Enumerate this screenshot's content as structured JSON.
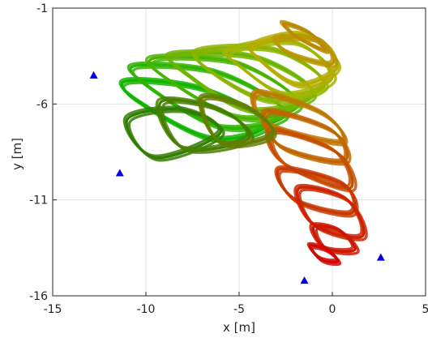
{
  "chart_data": {
    "type": "scatter",
    "title": "",
    "xlabel": "x [m]",
    "ylabel": "y [m]",
    "xlim": [
      -15,
      5
    ],
    "ylim": [
      -16,
      -1
    ],
    "xticks": [
      -15,
      -10,
      -5,
      0,
      5
    ],
    "yticks": [
      -16,
      -11,
      -6,
      -1
    ],
    "xtick_labels": [
      "-15",
      "-10",
      "-5",
      "0",
      "5"
    ],
    "ytick_labels": [
      "-16",
      "-11",
      "-6",
      "-1"
    ],
    "grid": true,
    "legend": "none",
    "colors": {
      "trajectory_start": "#00b400",
      "trajectory_mid": "#b4b400",
      "trajectory_end": "#d20000",
      "shadow_dark": "#2d5a00",
      "anchor": "#0000e0"
    },
    "series": [
      {
        "kind": "anchors",
        "marker": "triangle",
        "x": [
          -12.8,
          -11.4,
          -1.5,
          2.6
        ],
        "y": [
          -4.5,
          -9.6,
          -15.2,
          -14.0
        ]
      },
      {
        "kind": "trajectory",
        "description_of_geometry": "looping flight path",
        "loops": [
          {
            "x": [
              -11.0,
              -7.0,
              -3.5,
              -6.5,
              -10.5,
              -11.0
            ],
            "y": [
              -4.8,
              -5.2,
              -7.0,
              -7.8,
              -5.8,
              -4.8
            ],
            "c": 0.05
          },
          {
            "x": [
              -10.5,
              -6.0,
              -2.5,
              -6.0,
              -10.0,
              -10.5
            ],
            "y": [
              -4.0,
              -4.4,
              -6.5,
              -7.2,
              -5.0,
              -4.0
            ],
            "c": 0.12
          },
          {
            "x": [
              -9.5,
              -5.0,
              -1.8,
              -5.0,
              -9.0,
              -9.5
            ],
            "y": [
              -3.6,
              -3.9,
              -6.0,
              -6.7,
              -4.6,
              -3.6
            ],
            "c": 0.2
          },
          {
            "x": [
              -8.5,
              -4.0,
              -1.0,
              -4.5,
              -8.0,
              -8.5
            ],
            "y": [
              -3.4,
              -3.6,
              -5.5,
              -6.3,
              -4.3,
              -3.4
            ],
            "c": 0.3
          },
          {
            "x": [
              -7.0,
              -3.0,
              -0.4,
              -3.5,
              -6.8,
              -7.0
            ],
            "y": [
              -3.2,
              -3.2,
              -5.0,
              -5.8,
              -4.1,
              -3.2
            ],
            "c": 0.38
          },
          {
            "x": [
              -5.5,
              -2.0,
              0.0,
              -2.5,
              -5.0,
              -5.5
            ],
            "y": [
              -3.2,
              -2.8,
              -4.6,
              -5.5,
              -4.0,
              -3.2
            ],
            "c": 0.45
          },
          {
            "x": [
              -4.2,
              -1.5,
              0.3,
              -1.8,
              -4.0,
              -4.2
            ],
            "y": [
              -2.9,
              -2.4,
              -4.0,
              -5.0,
              -3.6,
              -2.9
            ],
            "c": 0.52
          },
          {
            "x": [
              -3.0,
              -0.6,
              0.0,
              -2.2,
              -3.0
            ],
            "y": [
              -2.6,
              -2.7,
              -3.9,
              -3.4,
              -2.6
            ],
            "c": 0.58
          },
          {
            "x": [
              -2.6,
              -1.2,
              -0.4,
              -1.9,
              -2.6
            ],
            "y": [
              -1.8,
              -2.3,
              -3.2,
              -2.5,
              -1.8
            ],
            "c": 0.62
          },
          {
            "x": [
              -4.0,
              -0.5,
              0.5,
              -3.5,
              -4.0
            ],
            "y": [
              -5.4,
              -6.5,
              -8.0,
              -7.0,
              -5.4
            ],
            "c": 0.66
          },
          {
            "x": [
              -3.5,
              0.0,
              0.6,
              -2.8,
              -3.5
            ],
            "y": [
              -6.4,
              -7.4,
              -9.0,
              -8.2,
              -6.4
            ],
            "c": 0.72
          },
          {
            "x": [
              -3.2,
              0.2,
              0.9,
              -2.6,
              -3.2
            ],
            "y": [
              -7.4,
              -8.5,
              -10.4,
              -9.1,
              -7.4
            ],
            "c": 0.78
          },
          {
            "x": [
              -2.8,
              0.6,
              1.0,
              -2.0,
              -2.8
            ],
            "y": [
              -9.4,
              -10.2,
              -11.7,
              -11.0,
              -9.4
            ],
            "c": 0.84
          },
          {
            "x": [
              -1.8,
              0.8,
              1.6,
              -1.0,
              -1.8
            ],
            "y": [
              -10.4,
              -11.0,
              -12.9,
              -12.3,
              -10.4
            ],
            "c": 0.9
          },
          {
            "x": [
              -1.0,
              0.4,
              1.2,
              -0.4,
              -1.0
            ],
            "y": [
              -12.4,
              -12.6,
              -13.6,
              -13.5,
              -12.4
            ],
            "c": 0.94
          },
          {
            "x": [
              -1.2,
              -0.3,
              0.3,
              -0.6,
              -1.2
            ],
            "y": [
              -13.4,
              -13.6,
              -14.2,
              -14.1,
              -13.4
            ],
            "c": 0.98
          },
          {
            "x": [
              -11.0,
              -8.0,
              -6.0,
              -9.5,
              -11.0
            ],
            "y": [
              -6.8,
              -6.3,
              -7.5,
              -8.8,
              -6.8
            ],
            "c": 0.15,
            "dark": true
          },
          {
            "x": [
              -9.2,
              -6.0,
              -4.5,
              -8.0,
              -9.2
            ],
            "y": [
              -5.9,
              -6.3,
              -7.8,
              -8.3,
              -5.9
            ],
            "c": 0.3,
            "dark": true
          },
          {
            "x": [
              -7.0,
              -4.5,
              -3.2,
              -6.0,
              -7.0
            ],
            "y": [
              -5.7,
              -6.2,
              -7.6,
              -8.0,
              -5.7
            ],
            "c": 0.5,
            "dark": true
          }
        ]
      }
    ]
  }
}
